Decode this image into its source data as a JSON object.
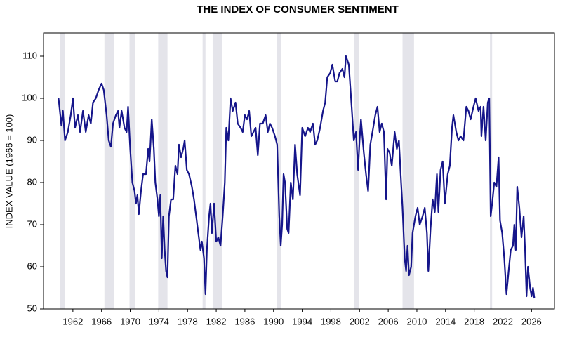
{
  "chart_data": {
    "type": "line",
    "title": "THE INDEX OF CONSUMER SENTIMENT",
    "y_label": "INDEX VALUE (1966 = 100)",
    "x": [
      1960.0,
      1960.4,
      1960.6,
      1960.9,
      1961.3,
      1961.7,
      1962.0,
      1962.3,
      1962.7,
      1963.0,
      1963.4,
      1963.8,
      1964.2,
      1964.5,
      1964.8,
      1965.2,
      1965.6,
      1966.0,
      1966.3,
      1966.7,
      1967.0,
      1967.3,
      1967.6,
      1968.0,
      1968.3,
      1968.5,
      1968.8,
      1969.2,
      1969.5,
      1969.7,
      1970.0,
      1970.3,
      1970.6,
      1970.8,
      1971.0,
      1971.2,
      1971.5,
      1971.8,
      1972.2,
      1972.5,
      1972.7,
      1973.0,
      1973.3,
      1973.5,
      1973.8,
      1974.0,
      1974.2,
      1974.4,
      1974.6,
      1974.8,
      1975.0,
      1975.2,
      1975.4,
      1975.7,
      1976.0,
      1976.3,
      1976.6,
      1976.8,
      1977.1,
      1977.4,
      1977.6,
      1977.9,
      1978.2,
      1978.6,
      1978.9,
      1979.2,
      1979.5,
      1979.8,
      1980.0,
      1980.3,
      1980.5,
      1980.7,
      1981.0,
      1981.2,
      1981.4,
      1981.7,
      1982.0,
      1982.3,
      1982.6,
      1982.9,
      1983.2,
      1983.4,
      1983.7,
      1984.0,
      1984.3,
      1984.7,
      1985.0,
      1985.4,
      1985.7,
      1986.0,
      1986.3,
      1986.6,
      1986.9,
      1987.2,
      1987.5,
      1987.8,
      1988.1,
      1988.5,
      1988.9,
      1989.2,
      1989.5,
      1989.8,
      1990.2,
      1990.5,
      1990.8,
      1991.0,
      1991.2,
      1991.4,
      1991.6,
      1991.9,
      1992.1,
      1992.4,
      1992.7,
      1993.0,
      1993.3,
      1993.7,
      1994.0,
      1994.4,
      1994.8,
      1995.1,
      1995.5,
      1995.8,
      1996.1,
      1996.5,
      1996.9,
      1997.2,
      1997.5,
      1997.9,
      1998.2,
      1998.6,
      1998.9,
      1999.2,
      1999.6,
      1999.9,
      2000.1,
      2000.5,
      2000.9,
      2001.2,
      2001.5,
      2001.8,
      2002.0,
      2002.2,
      2002.6,
      2002.9,
      2003.2,
      2003.5,
      2003.9,
      2004.2,
      2004.5,
      2004.8,
      2005.1,
      2005.4,
      2005.7,
      2005.9,
      2006.2,
      2006.5,
      2006.9,
      2007.2,
      2007.5,
      2007.8,
      2008.0,
      2008.3,
      2008.5,
      2008.7,
      2008.9,
      2009.2,
      2009.4,
      2009.8,
      2010.1,
      2010.4,
      2010.8,
      2011.1,
      2011.4,
      2011.6,
      2011.9,
      2012.2,
      2012.5,
      2012.8,
      2013.0,
      2013.3,
      2013.6,
      2013.9,
      2014.3,
      2014.6,
      2014.9,
      2015.1,
      2015.5,
      2015.8,
      2016.1,
      2016.5,
      2016.9,
      2017.2,
      2017.5,
      2017.9,
      2018.2,
      2018.6,
      2018.9,
      2019.0,
      2019.3,
      2019.6,
      2019.9,
      2020.1,
      2020.3,
      2020.5,
      2020.8,
      2021.1,
      2021.4,
      2021.6,
      2021.9,
      2022.2,
      2022.5,
      2022.8,
      2023.1,
      2023.4,
      2023.6,
      2023.8,
      2024.0,
      2024.3,
      2024.6,
      2024.9,
      2025.1,
      2025.3,
      2025.5,
      2025.8,
      2026.0,
      2026.2,
      2026.4
    ],
    "series": [
      {
        "color": "#15158a",
        "values": [
          100,
          93.5,
          97,
          90,
          92,
          96,
          100,
          93,
          96,
          92,
          97,
          92,
          96,
          94,
          99,
          100,
          102,
          103.5,
          102,
          96,
          90,
          88.5,
          94,
          96,
          97,
          93,
          97,
          93,
          92,
          98,
          88,
          80,
          78,
          75,
          77,
          72.5,
          78,
          82,
          82,
          88,
          85,
          95,
          88,
          80,
          76,
          72,
          77,
          62,
          72,
          64,
          59,
          57.5,
          72,
          76,
          76,
          84,
          82,
          89,
          86,
          88,
          90,
          83,
          82,
          79,
          76,
          72,
          68,
          64,
          66,
          62,
          53.5,
          64,
          72,
          75,
          68,
          75,
          66,
          67,
          65,
          72,
          80,
          93,
          90,
          100,
          97,
          99,
          94,
          93,
          92,
          96,
          95,
          97,
          91,
          92,
          93,
          86.5,
          94,
          94,
          96,
          92,
          94,
          93,
          91,
          89,
          72,
          65,
          70,
          82,
          80,
          69,
          68,
          80,
          76,
          89,
          82,
          77,
          93,
          91,
          93,
          92,
          94,
          89,
          90,
          93,
          97,
          99,
          105,
          106,
          108,
          104,
          104,
          106,
          107,
          105,
          110,
          108,
          98,
          90,
          92,
          83,
          90,
          95,
          87,
          82,
          78,
          89,
          93,
          96,
          98,
          92,
          94,
          92,
          76,
          88,
          87,
          84,
          92,
          88,
          90,
          80,
          74,
          62,
          59,
          65,
          58,
          60,
          68,
          72,
          74,
          70,
          72,
          74,
          68,
          59,
          69,
          76,
          73,
          82,
          73,
          83,
          85,
          75,
          82,
          84,
          93,
          96,
          92,
          90,
          91,
          90,
          98,
          97,
          95,
          98,
          100,
          97,
          98,
          91,
          98,
          90,
          99,
          100,
          72,
          75,
          80,
          79,
          86,
          71,
          68,
          62,
          53.5,
          59,
          64,
          65,
          70,
          64,
          79,
          74,
          67,
          72,
          64,
          53,
          60,
          55,
          53,
          55,
          52.5
        ]
      }
    ],
    "shaded_periods": [
      [
        1960.2,
        1960.9
      ],
      [
        1966.4,
        1967.7
      ],
      [
        1969.9,
        1970.7
      ],
      [
        1973.9,
        1975.2
      ],
      [
        1980.1,
        1980.5
      ],
      [
        1981.5,
        1982.8
      ],
      [
        1990.5,
        1991.1
      ],
      [
        2001.2,
        2001.9
      ],
      [
        2008.0,
        2009.6
      ],
      [
        2020.2,
        2020.5
      ]
    ],
    "shade_color": "#e4e4ea",
    "xlim": [
      1957.9,
      2029.2
    ],
    "xticks": [
      1962,
      1966,
      1970,
      1974,
      1978,
      1982,
      1986,
      1990,
      1994,
      1998,
      2002,
      2006,
      2010,
      2014,
      2018,
      2022,
      2026
    ],
    "ylim": [
      50,
      115.5
    ],
    "yticks": [
      50,
      60,
      70,
      80,
      90,
      100,
      110
    ],
    "grid": false
  }
}
